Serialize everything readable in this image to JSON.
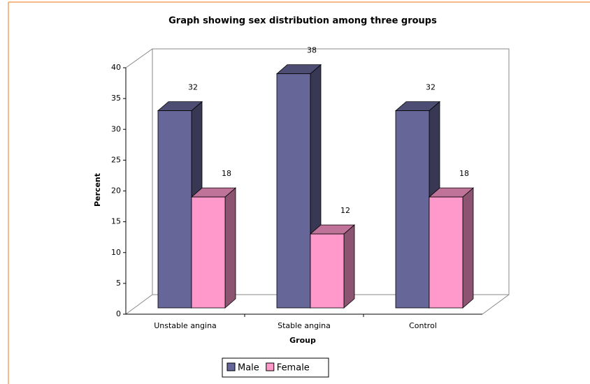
{
  "chart_data": {
    "type": "bar",
    "title": "Graph showing sex distribution among three groups",
    "x_label": "Group",
    "y_label": "Percent",
    "categories": [
      "Unstable angina",
      "Stable angina",
      "Control"
    ],
    "series": [
      {
        "name": "Male",
        "color": "#666699",
        "values": [
          32,
          38,
          32
        ]
      },
      {
        "name": "Female",
        "color": "#ff99cc",
        "values": [
          18,
          12,
          18
        ]
      }
    ],
    "ylim": [
      0,
      40
    ],
    "yticks": [
      0,
      5,
      10,
      15,
      20,
      25,
      30,
      35,
      40
    ],
    "legend": "bottom"
  }
}
